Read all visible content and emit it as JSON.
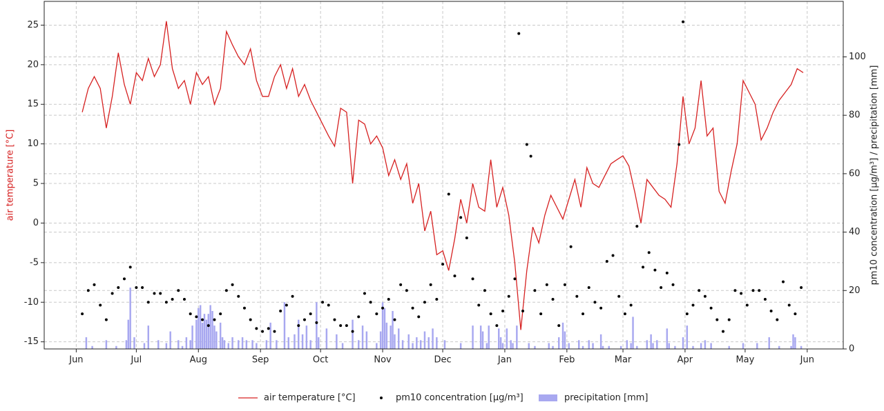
{
  "chart_data": {
    "type": "combo",
    "y_label": "air temperature [°C]",
    "y2_label": "pm10 concentration [µg/m³] / precipitation [mm]",
    "xlim": [
      -16,
      383
    ],
    "xticks": [
      {
        "value": 0,
        "label": "Jun"
      },
      {
        "value": 30,
        "label": "Jul"
      },
      {
        "value": 61,
        "label": "Aug"
      },
      {
        "value": 92,
        "label": "Sep"
      },
      {
        "value": 122,
        "label": "Oct"
      },
      {
        "value": 153,
        "label": "Nov"
      },
      {
        "value": 183,
        "label": "Dec"
      },
      {
        "value": 214,
        "label": "Jan"
      },
      {
        "value": 245,
        "label": "Feb"
      },
      {
        "value": 273,
        "label": "Mar"
      },
      {
        "value": 304,
        "label": "Apr"
      },
      {
        "value": 334,
        "label": "May"
      },
      {
        "value": 365,
        "label": "Jun"
      }
    ],
    "ylim": [
      -15.9,
      28
    ],
    "yticks": [
      -15,
      -10,
      -5,
      0,
      5,
      10,
      15,
      20,
      25
    ],
    "y2lim": [
      0,
      119
    ],
    "y2ticks": [
      0,
      20,
      40,
      60,
      80,
      100
    ],
    "grid": true,
    "legend": "bottom",
    "series": [
      {
        "name": "air temperature [°C]",
        "type": "line",
        "color": "#d62020",
        "x": [
          3,
          6,
          9,
          12,
          15,
          18,
          21,
          24,
          27,
          30,
          33,
          36,
          39,
          42,
          45,
          48,
          51,
          54,
          57,
          60,
          63,
          66,
          69,
          72,
          75,
          78,
          81,
          84,
          87,
          90,
          93,
          96,
          99,
          102,
          105,
          108,
          111,
          114,
          117,
          120,
          123,
          126,
          129,
          132,
          135,
          138,
          141,
          144,
          147,
          150,
          153,
          156,
          159,
          162,
          165,
          168,
          171,
          174,
          177,
          180,
          183,
          186,
          189,
          192,
          195,
          198,
          201,
          204,
          207,
          210,
          213,
          216,
          219,
          222,
          225,
          228,
          231,
          234,
          237,
          240,
          243,
          246,
          249,
          252,
          255,
          258,
          261,
          264,
          267,
          270,
          273,
          276,
          279,
          282,
          285,
          288,
          291,
          294,
          297,
          300,
          303,
          306,
          309,
          312,
          315,
          318,
          321,
          324,
          327,
          330,
          333,
          336,
          339,
          342,
          345,
          348,
          351,
          354,
          357,
          360,
          363
        ],
        "values": [
          14,
          17,
          18.5,
          17,
          12,
          16,
          21.5,
          17.5,
          15,
          19,
          18,
          20.8,
          18.5,
          20,
          25.5,
          19.5,
          17,
          18,
          15,
          19,
          17.5,
          18.5,
          15,
          17,
          24.2,
          22.5,
          21,
          20,
          22,
          18,
          16,
          16,
          18.5,
          20,
          17,
          19.5,
          16,
          17.5,
          15.5,
          14,
          12.5,
          11,
          9.7,
          14.5,
          14,
          5,
          13,
          12.5,
          10,
          11,
          9.5,
          6,
          8,
          5.5,
          7.5,
          2.5,
          5,
          -1,
          1.5,
          -4,
          -3.5,
          -6,
          -2,
          3,
          0,
          5,
          2,
          1.5,
          8,
          2,
          4.5,
          1,
          -5,
          -13.5,
          -6,
          -0.5,
          -2.5,
          1,
          3.5,
          2,
          0.5,
          3,
          5.5,
          2,
          7,
          5,
          4.5,
          6,
          7.5,
          8,
          8.5,
          7.2,
          3.8,
          0,
          5.5,
          4.5,
          3.5,
          3,
          2,
          7.5,
          16,
          10,
          12,
          18,
          11,
          12,
          4,
          2.5,
          6.5,
          10,
          18,
          16.5,
          15,
          10.5,
          12,
          14,
          15.5,
          16.5,
          17.5,
          19.5,
          19
        ]
      },
      {
        "name": "pm10 concentration [µg/m³]",
        "type": "scatter",
        "axis": "y2",
        "color": "#000000",
        "x": [
          3,
          6,
          9,
          12,
          15,
          18,
          21,
          24,
          27,
          30,
          33,
          36,
          39,
          42,
          45,
          48,
          51,
          54,
          57,
          60,
          63,
          66,
          69,
          72,
          75,
          78,
          81,
          84,
          87,
          90,
          93,
          96,
          99,
          102,
          105,
          108,
          111,
          114,
          117,
          120,
          123,
          126,
          129,
          132,
          135,
          138,
          141,
          144,
          147,
          150,
          153,
          156,
          159,
          162,
          165,
          168,
          171,
          174,
          177,
          180,
          183,
          186,
          189,
          192,
          195,
          198,
          201,
          204,
          207,
          210,
          213,
          216,
          219,
          221,
          223,
          225,
          227,
          229,
          232,
          235,
          238,
          241,
          244,
          247,
          250,
          253,
          256,
          259,
          262,
          265,
          268,
          271,
          274,
          277,
          280,
          283,
          286,
          289,
          292,
          295,
          298,
          301,
          303,
          305,
          308,
          311,
          314,
          317,
          320,
          323,
          326,
          329,
          332,
          335,
          338,
          341,
          344,
          347,
          350,
          353,
          356,
          359,
          362
        ],
        "values": [
          12,
          20,
          22,
          15,
          10,
          19,
          21,
          24,
          28,
          21,
          21,
          16,
          19,
          19,
          16,
          17,
          20,
          17,
          12,
          11,
          10,
          8,
          10,
          12,
          20,
          22,
          18,
          14,
          10,
          7,
          6,
          7,
          6,
          13,
          15,
          18,
          8,
          10,
          12,
          9,
          16,
          15,
          10,
          8,
          8,
          6,
          11,
          19,
          16,
          12,
          14,
          17,
          10,
          22,
          20,
          14,
          11,
          16,
          22,
          17,
          29,
          53,
          25,
          45,
          38,
          24,
          15,
          20,
          12,
          8,
          13,
          18,
          24,
          108,
          13,
          70,
          66,
          20,
          12,
          22,
          17,
          8,
          22,
          35,
          18,
          12,
          21,
          16,
          14,
          30,
          32,
          18,
          12,
          15,
          42,
          28,
          33,
          27,
          21,
          26,
          22,
          70,
          112,
          12,
          15,
          20,
          18,
          14,
          10,
          6,
          10,
          20,
          19,
          15,
          20,
          20,
          17,
          13,
          10,
          23,
          15,
          12,
          21
        ]
      },
      {
        "name": "precipitation [mm]",
        "type": "bar",
        "axis": "y2",
        "color": "#a8a8f0",
        "x": [
          5,
          8,
          15,
          20,
          25,
          26,
          27,
          29,
          34,
          36,
          41,
          45,
          47,
          51,
          53,
          55,
          57,
          58,
          60,
          61,
          62,
          63,
          64,
          65,
          66,
          67,
          68,
          69,
          70,
          72,
          73,
          74,
          76,
          78,
          81,
          83,
          85,
          88,
          90,
          95,
          97,
          100,
          104,
          106,
          109,
          111,
          113,
          115,
          117,
          120,
          121,
          125,
          130,
          133,
          138,
          141,
          143,
          145,
          150,
          152,
          153,
          154,
          155,
          157,
          158,
          159,
          161,
          163,
          166,
          168,
          170,
          172,
          174,
          176,
          178,
          180,
          184,
          192,
          198,
          202,
          203,
          205,
          206,
          211,
          212,
          213,
          215,
          217,
          218,
          220,
          226,
          229,
          236,
          238,
          241,
          243,
          244,
          246,
          251,
          253,
          256,
          258,
          262,
          263,
          266,
          272,
          275,
          277,
          278,
          280,
          285,
          287,
          288,
          290,
          295,
          296,
          299,
          303,
          305,
          308,
          312,
          314,
          317,
          326,
          333,
          340,
          346,
          351,
          357,
          358,
          359,
          362
        ],
        "values": [
          4,
          1,
          3,
          1,
          3,
          10,
          21,
          4,
          2,
          8,
          3,
          2,
          6,
          3,
          1,
          4,
          3,
          8,
          10,
          14,
          15,
          9,
          12,
          10,
          12,
          15,
          13,
          8,
          6,
          9,
          4,
          3,
          2,
          4,
          3,
          4,
          3,
          3,
          2,
          3,
          9,
          3,
          16,
          4,
          5,
          10,
          5,
          8,
          3,
          16,
          4,
          7,
          5,
          2,
          10,
          3,
          8,
          6,
          2,
          6,
          16,
          14,
          9,
          8,
          13,
          5,
          7,
          3,
          5,
          2,
          4,
          3,
          6,
          4,
          7,
          4,
          3,
          2,
          8,
          8,
          6,
          2,
          8,
          7,
          4,
          2,
          7,
          3,
          2,
          8,
          2,
          1,
          2,
          1,
          4,
          9,
          6,
          2,
          3,
          1,
          3,
          2,
          5,
          1,
          1,
          1,
          3,
          2,
          11,
          1,
          3,
          5,
          2,
          3,
          7,
          2,
          1,
          4,
          8,
          1,
          2,
          3,
          2,
          1,
          2,
          2,
          4,
          1,
          1,
          5,
          4,
          1
        ]
      }
    ]
  }
}
